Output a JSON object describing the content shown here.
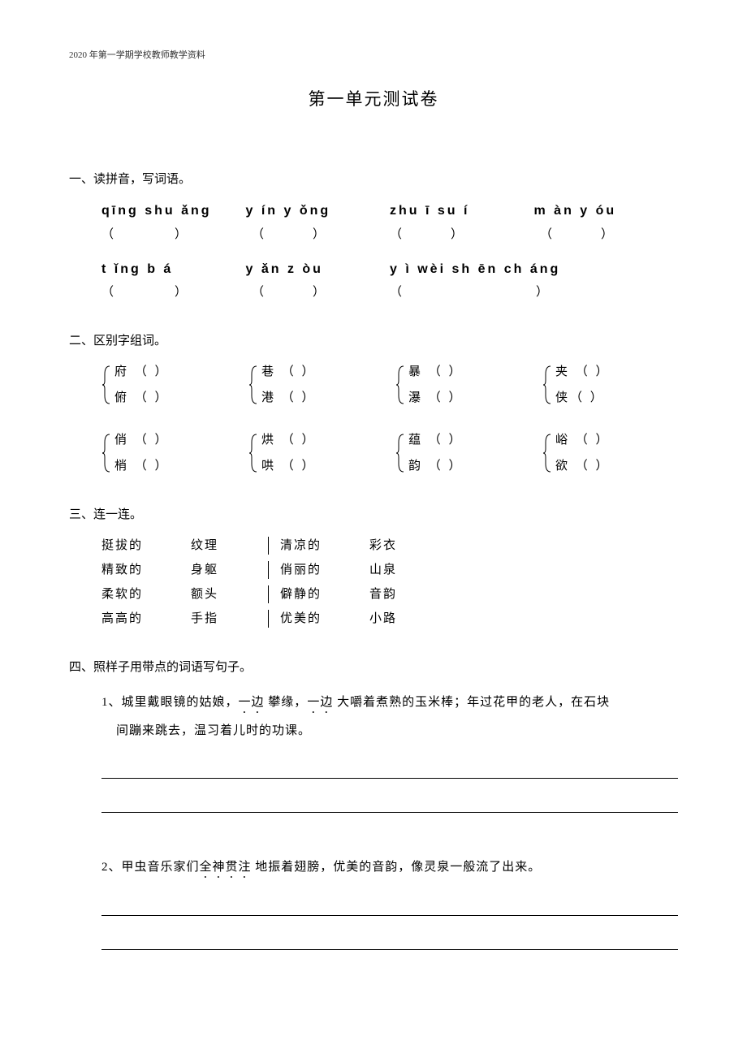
{
  "header_note": "2020 年第一学期学校教师教学资料",
  "title": "第一单元测试卷",
  "sections": {
    "s1": {
      "heading": "一、读拼音，写词语。",
      "row1": {
        "p1": "qīng shu ǎng",
        "p2": "y   ín y ǒng",
        "p3": "zhu  ī su í",
        "p4": "m   àn y óu"
      },
      "row2": {
        "p1": "t ǐng b á",
        "p2": "y   ǎn z òu",
        "p3": "y   ì wèi sh ēn ch áng"
      },
      "paren_open": "（",
      "paren_close": "）"
    },
    "s2": {
      "heading": "二、区别字组词。",
      "groups_row1": [
        {
          "top": "府 （       ）",
          "bot": "俯 （       ）"
        },
        {
          "top": "巷 （       ）",
          "bot": "港 （       ）"
        },
        {
          "top": "暴 （       ）",
          "bot": "瀑 （       ）"
        },
        {
          "top": "夹 （       ）",
          "bot": "侠（      ）"
        }
      ],
      "groups_row2": [
        {
          "top": "俏 （       ）",
          "bot": "梢 （       ）"
        },
        {
          "top": "烘 （       ）",
          "bot": "哄 （       ）"
        },
        {
          "top": "蕴 （       ）",
          "bot": "韵 （       ）"
        },
        {
          "top": "峪 （       ）",
          "bot": "欲 （       ）"
        }
      ]
    },
    "s3": {
      "heading": "三、连一连。",
      "rows": [
        {
          "a": "挺拔的",
          "b": "纹理",
          "c": "清凉的",
          "d": "彩衣"
        },
        {
          "a": "精致的",
          "b": "身躯",
          "c": "俏丽的",
          "d": "山泉"
        },
        {
          "a": "柔软的",
          "b": "额头",
          "c": "僻静的",
          "d": "音韵"
        },
        {
          "a": "高高的",
          "b": "手指",
          "c": "优美的",
          "d": "小路"
        }
      ]
    },
    "s4": {
      "heading": "四、照样子用带点的词语写句子。",
      "q1": {
        "num": "1、",
        "pre": "城里戴眼镜的姑娘，",
        "e1": "一边",
        "mid1": " 攀缘，",
        "e2": "一边",
        "mid2": " 大嚼着煮熟的玉米棒；年过花甲的老人，在石块",
        "line2": "间蹦来跳去，温习着儿时的功课。"
      },
      "q2": {
        "num": "2、",
        "pre": "甲虫音乐家们",
        "e1": "全神贯注",
        "post": " 地振着翅膀，优美的音韵，像灵泉一般流了出来。"
      }
    }
  },
  "colors": {
    "text": "#000000",
    "bg": "#ffffff"
  }
}
